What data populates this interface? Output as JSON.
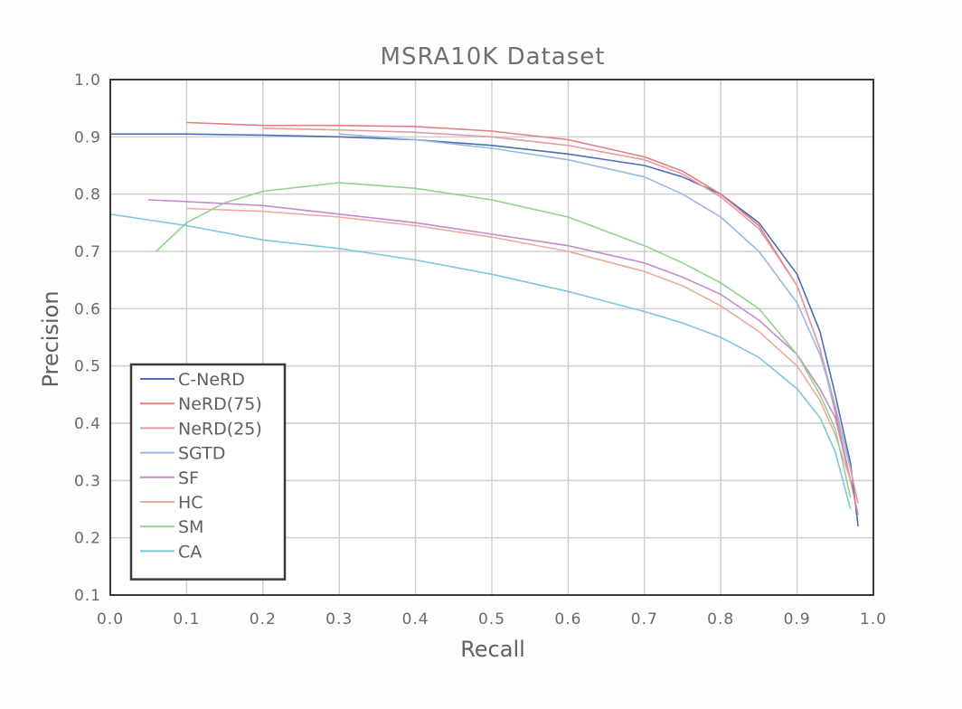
{
  "chart_data": {
    "type": "line",
    "title": "MSRA10K Dataset",
    "xlabel": "Recall",
    "ylabel": "Precision",
    "xlim": [
      0.0,
      1.0
    ],
    "ylim": [
      0.1,
      1.0
    ],
    "xticks": [
      "0.0",
      "0.1",
      "0.2",
      "0.3",
      "0.4",
      "0.5",
      "0.6",
      "0.7",
      "0.8",
      "0.9",
      "1.0"
    ],
    "yticks": [
      "0.1",
      "0.2",
      "0.3",
      "0.4",
      "0.5",
      "0.6",
      "0.7",
      "0.8",
      "0.9",
      "1.0"
    ],
    "grid": true,
    "legend_position": "lower-left",
    "series": [
      {
        "name": "C-NeRD",
        "color": "#4a6fb8",
        "points": [
          [
            0.0,
            0.905
          ],
          [
            0.1,
            0.905
          ],
          [
            0.2,
            0.903
          ],
          [
            0.3,
            0.9
          ],
          [
            0.4,
            0.895
          ],
          [
            0.5,
            0.885
          ],
          [
            0.6,
            0.87
          ],
          [
            0.7,
            0.85
          ],
          [
            0.75,
            0.83
          ],
          [
            0.8,
            0.8
          ],
          [
            0.85,
            0.75
          ],
          [
            0.9,
            0.66
          ],
          [
            0.93,
            0.56
          ],
          [
            0.95,
            0.45
          ],
          [
            0.97,
            0.33
          ],
          [
            0.98,
            0.22
          ]
        ]
      },
      {
        "name": "NeRD(75)",
        "color": "#e27f7f",
        "points": [
          [
            0.1,
            0.925
          ],
          [
            0.2,
            0.92
          ],
          [
            0.3,
            0.92
          ],
          [
            0.4,
            0.918
          ],
          [
            0.5,
            0.91
          ],
          [
            0.6,
            0.895
          ],
          [
            0.7,
            0.865
          ],
          [
            0.75,
            0.84
          ],
          [
            0.8,
            0.8
          ],
          [
            0.85,
            0.745
          ],
          [
            0.9,
            0.64
          ],
          [
            0.93,
            0.53
          ],
          [
            0.95,
            0.42
          ],
          [
            0.97,
            0.3
          ],
          [
            0.98,
            0.24
          ]
        ]
      },
      {
        "name": "NeRD(25)",
        "color": "#e59aa8",
        "points": [
          [
            0.2,
            0.915
          ],
          [
            0.3,
            0.912
          ],
          [
            0.4,
            0.908
          ],
          [
            0.5,
            0.9
          ],
          [
            0.6,
            0.885
          ],
          [
            0.7,
            0.86
          ],
          [
            0.75,
            0.835
          ],
          [
            0.8,
            0.795
          ],
          [
            0.85,
            0.74
          ],
          [
            0.9,
            0.64
          ],
          [
            0.93,
            0.53
          ],
          [
            0.95,
            0.43
          ],
          [
            0.97,
            0.32
          ],
          [
            0.98,
            0.26
          ]
        ]
      },
      {
        "name": "SGTD",
        "color": "#9ab7e0",
        "points": [
          [
            0.3,
            0.905
          ],
          [
            0.4,
            0.895
          ],
          [
            0.5,
            0.88
          ],
          [
            0.6,
            0.86
          ],
          [
            0.7,
            0.83
          ],
          [
            0.75,
            0.8
          ],
          [
            0.8,
            0.76
          ],
          [
            0.85,
            0.7
          ],
          [
            0.9,
            0.61
          ],
          [
            0.93,
            0.52
          ],
          [
            0.95,
            0.43
          ],
          [
            0.97,
            0.32
          ]
        ]
      },
      {
        "name": "SF",
        "color": "#c58ac9",
        "points": [
          [
            0.05,
            0.79
          ],
          [
            0.1,
            0.787
          ],
          [
            0.2,
            0.78
          ],
          [
            0.3,
            0.765
          ],
          [
            0.4,
            0.75
          ],
          [
            0.5,
            0.73
          ],
          [
            0.6,
            0.71
          ],
          [
            0.7,
            0.68
          ],
          [
            0.75,
            0.655
          ],
          [
            0.8,
            0.625
          ],
          [
            0.85,
            0.58
          ],
          [
            0.9,
            0.52
          ],
          [
            0.93,
            0.46
          ],
          [
            0.95,
            0.41
          ],
          [
            0.97,
            0.3
          ]
        ]
      },
      {
        "name": "HC",
        "color": "#f0a8a0",
        "points": [
          [
            0.1,
            0.775
          ],
          [
            0.2,
            0.77
          ],
          [
            0.3,
            0.76
          ],
          [
            0.4,
            0.745
          ],
          [
            0.5,
            0.725
          ],
          [
            0.6,
            0.7
          ],
          [
            0.7,
            0.665
          ],
          [
            0.75,
            0.64
          ],
          [
            0.8,
            0.605
          ],
          [
            0.85,
            0.56
          ],
          [
            0.9,
            0.5
          ],
          [
            0.93,
            0.44
          ],
          [
            0.95,
            0.38
          ],
          [
            0.97,
            0.3
          ]
        ]
      },
      {
        "name": "SM",
        "color": "#8fd38f",
        "points": [
          [
            0.06,
            0.7
          ],
          [
            0.1,
            0.75
          ],
          [
            0.15,
            0.785
          ],
          [
            0.2,
            0.805
          ],
          [
            0.3,
            0.82
          ],
          [
            0.4,
            0.81
          ],
          [
            0.5,
            0.79
          ],
          [
            0.6,
            0.76
          ],
          [
            0.7,
            0.71
          ],
          [
            0.75,
            0.68
          ],
          [
            0.8,
            0.645
          ],
          [
            0.85,
            0.6
          ],
          [
            0.9,
            0.52
          ],
          [
            0.93,
            0.45
          ],
          [
            0.95,
            0.39
          ],
          [
            0.97,
            0.27
          ]
        ]
      },
      {
        "name": "CA",
        "color": "#7cc8d8",
        "points": [
          [
            0.0,
            0.765
          ],
          [
            0.1,
            0.745
          ],
          [
            0.2,
            0.72
          ],
          [
            0.3,
            0.705
          ],
          [
            0.4,
            0.685
          ],
          [
            0.5,
            0.66
          ],
          [
            0.6,
            0.63
          ],
          [
            0.7,
            0.595
          ],
          [
            0.75,
            0.575
          ],
          [
            0.8,
            0.55
          ],
          [
            0.85,
            0.515
          ],
          [
            0.9,
            0.46
          ],
          [
            0.93,
            0.41
          ],
          [
            0.95,
            0.35
          ],
          [
            0.97,
            0.25
          ]
        ]
      }
    ]
  }
}
